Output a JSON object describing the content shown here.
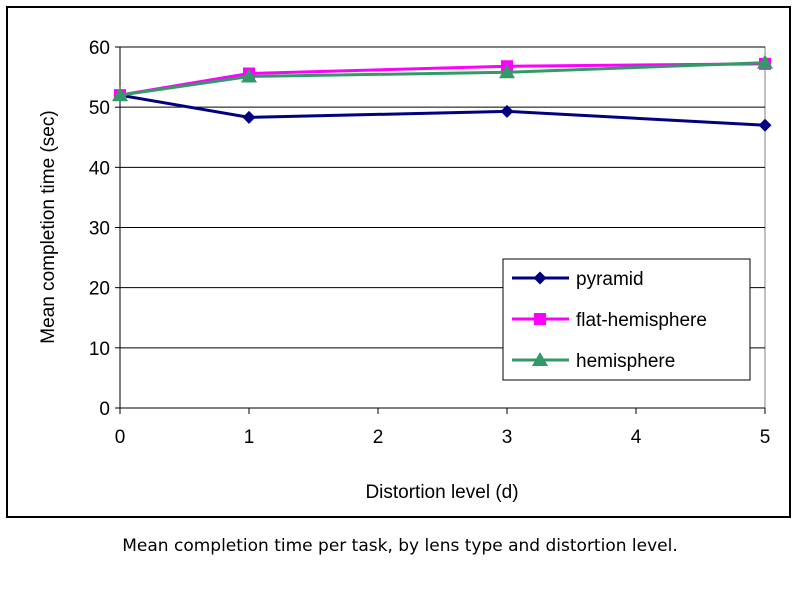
{
  "chart_data": {
    "type": "line",
    "xlabel": "Distortion level (d)",
    "ylabel": "Mean completion time (sec)",
    "xlim": [
      0,
      5
    ],
    "ylim": [
      0,
      60
    ],
    "x_ticks": [
      "0",
      "1",
      "2",
      "3",
      "4",
      "5"
    ],
    "y_ticks": [
      "0",
      "10",
      "20",
      "30",
      "40",
      "50",
      "60"
    ],
    "grid": "horizontal",
    "legend_position": "bottom-right",
    "series": [
      {
        "name": "pyramid",
        "color": "#000080",
        "marker": "diamond",
        "x": [
          0,
          1,
          3,
          5
        ],
        "y": [
          52,
          48.3,
          49.3,
          47
        ]
      },
      {
        "name": "flat-hemisphere",
        "color": "#FF00FF",
        "marker": "square",
        "x": [
          0,
          1,
          3,
          5
        ],
        "y": [
          52,
          55.6,
          56.8,
          57.2
        ]
      },
      {
        "name": "hemisphere",
        "color": "#339966",
        "marker": "triangle",
        "x": [
          0,
          1,
          3,
          5
        ],
        "y": [
          52,
          55.1,
          55.8,
          57.4
        ]
      }
    ]
  },
  "caption": "Mean completion time per task, by lens type and distortion level."
}
